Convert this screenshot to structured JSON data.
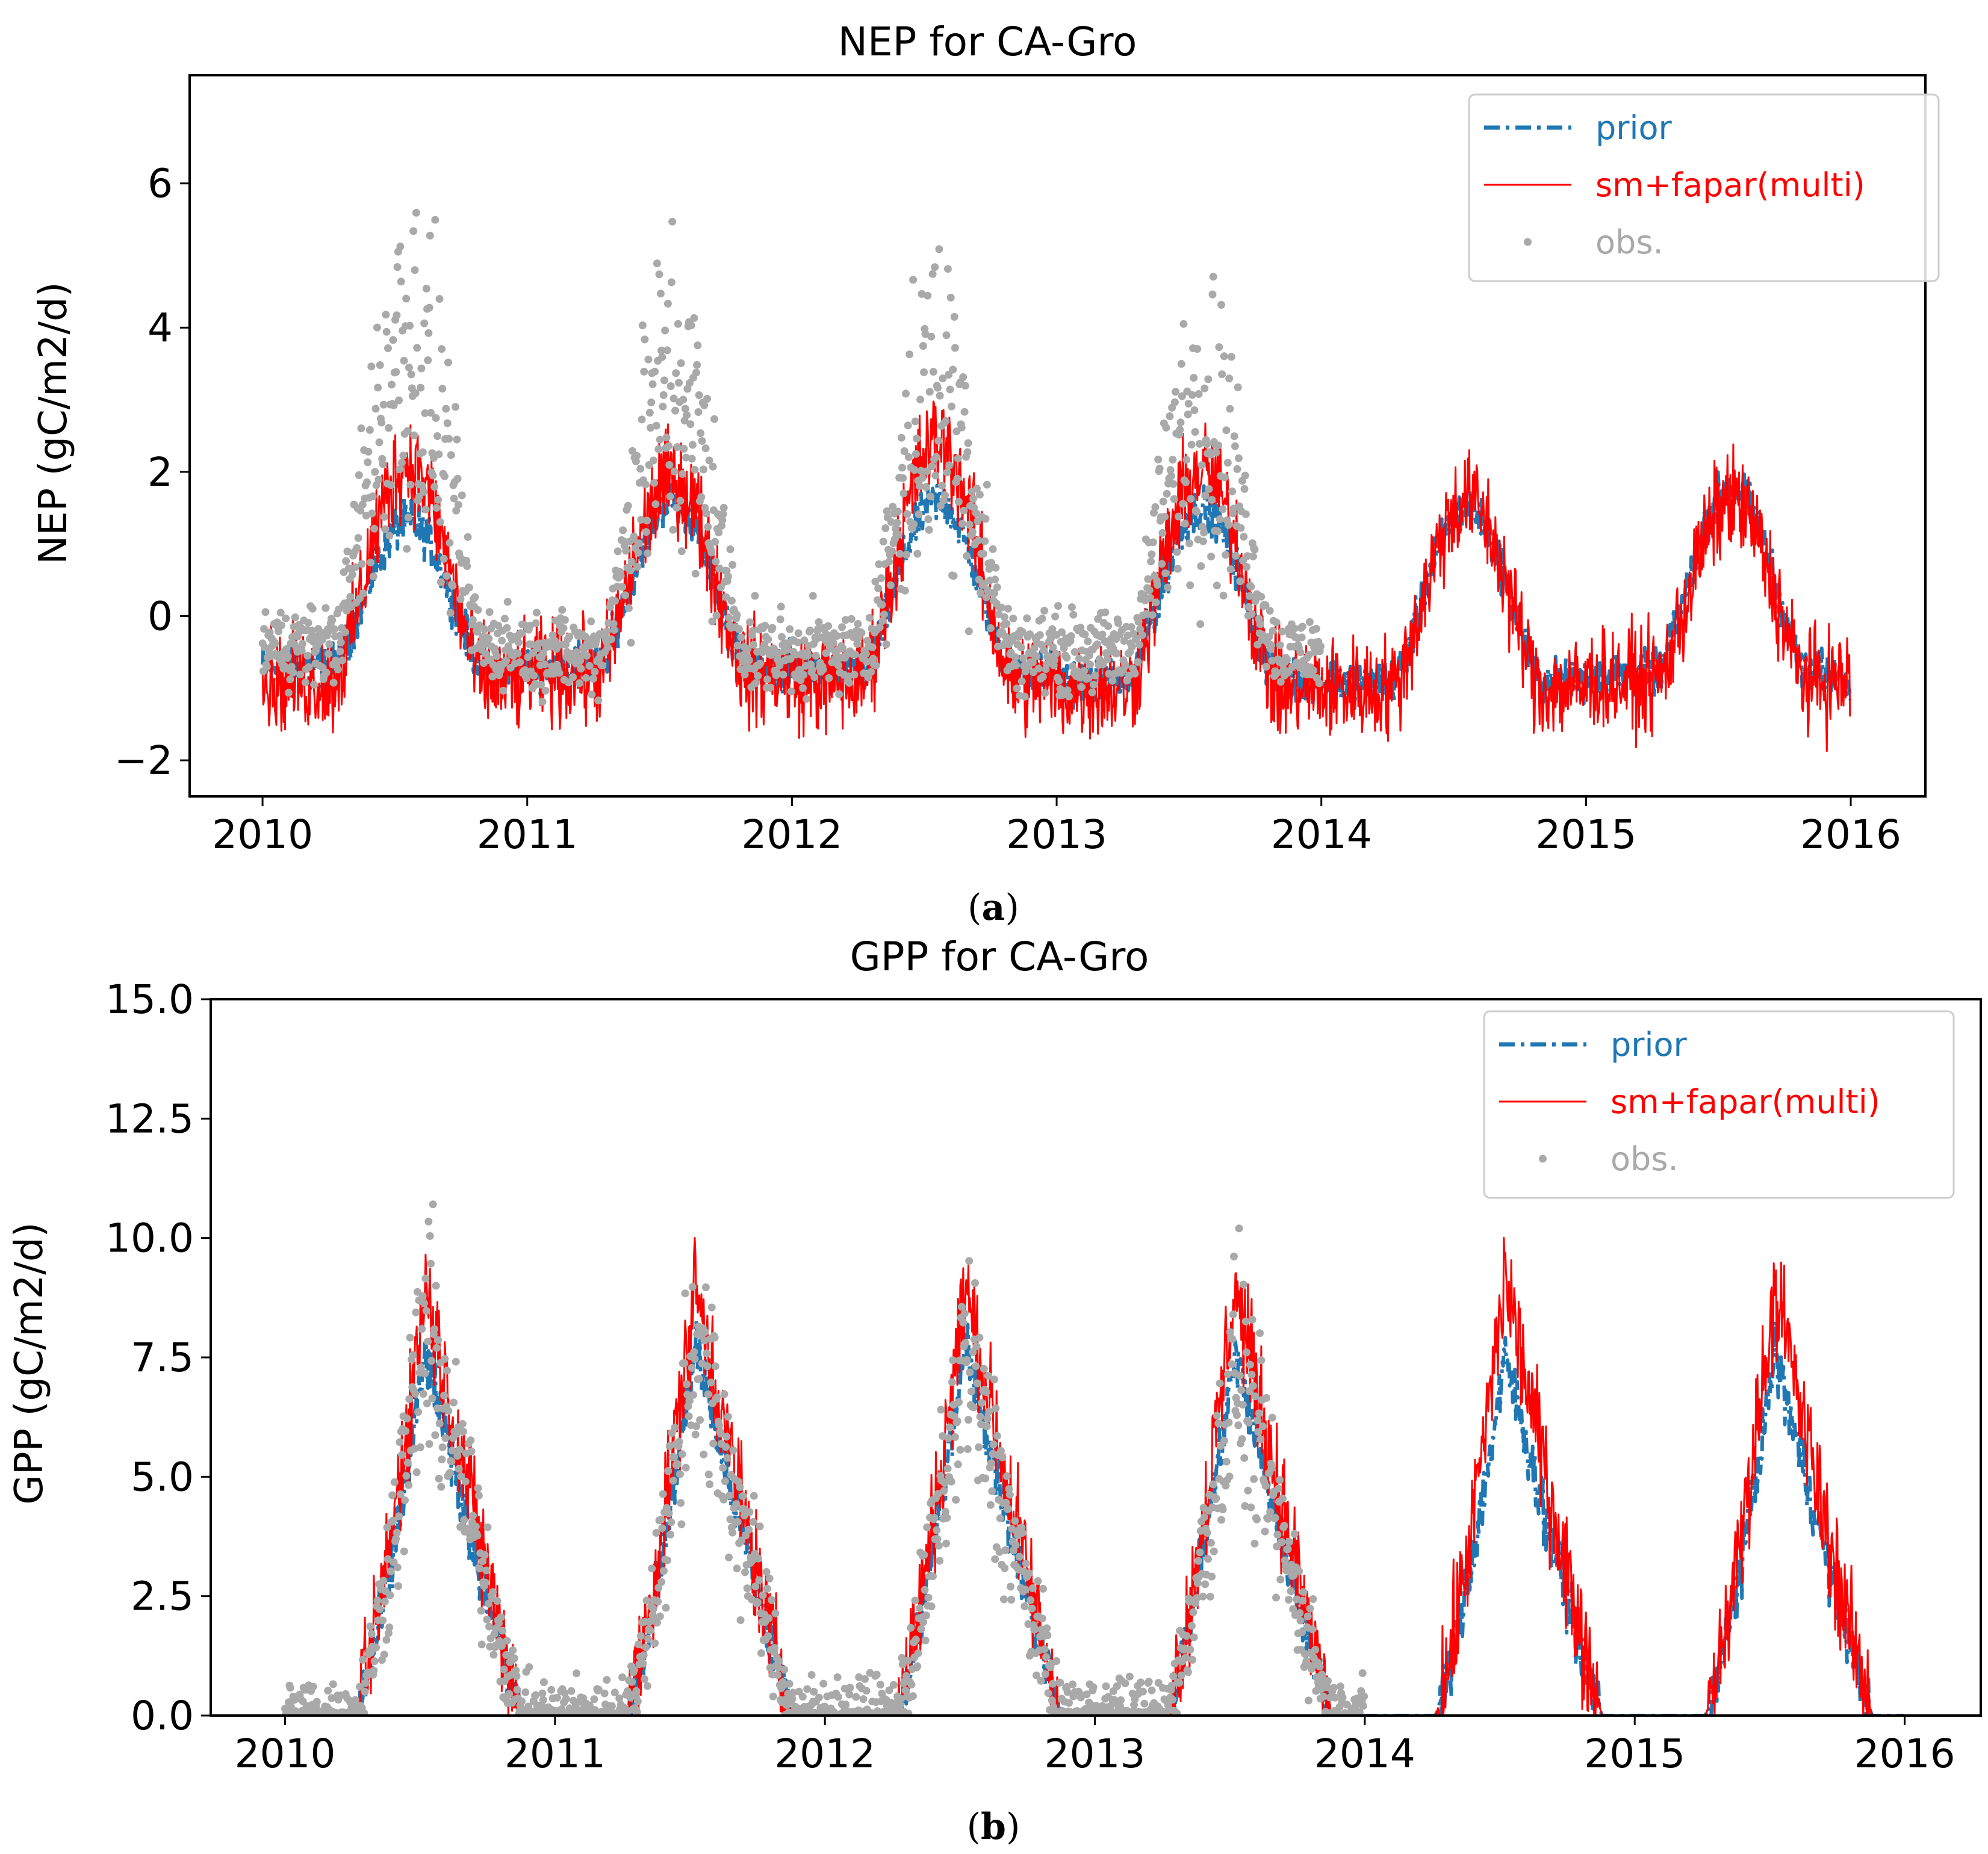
{
  "colors": {
    "prior": "#1f77b4",
    "sm": "#ff0000",
    "obs": "#a9a9a9",
    "axis": "#000000",
    "legend_border": "#cccccc"
  },
  "chart_data": [
    {
      "type": "line",
      "title": "NEP for CA-Gro",
      "xlabel": "",
      "ylabel": "NEP (gC/m2/d)",
      "xlim": [
        2010,
        2016
      ],
      "ylim": [
        -2.5,
        7.5
      ],
      "x_ticks": [
        2010,
        2011,
        2012,
        2013,
        2014,
        2015,
        2016
      ],
      "x_tick_labels": [
        "2010",
        "2011",
        "2012",
        "2013",
        "2014",
        "2015",
        "2016"
      ],
      "y_ticks": [
        -2,
        0,
        2,
        4,
        6
      ],
      "y_tick_labels": [
        "−2",
        "0",
        "2",
        "4",
        "6"
      ],
      "legend_position": "top-right",
      "series": [
        {
          "name": "prior",
          "style": "dash-dot",
          "color": "#1f77b4",
          "winter": [
            -0.7,
            -0.7,
            -0.8,
            -0.9,
            -0.9,
            -0.8
          ],
          "peak": [
            1.3,
            1.6,
            1.6,
            1.5,
            1.5,
            1.8
          ],
          "noise": 0.15
        },
        {
          "name": "sm+fapar(multi)",
          "style": "solid",
          "color": "#ff0000",
          "winter": [
            -0.9,
            -0.8,
            -0.9,
            -1.0,
            -1.0,
            -0.9
          ],
          "peak": [
            2.1,
            1.9,
            2.4,
            2.0,
            1.6,
            1.6
          ],
          "noise": 0.35
        },
        {
          "name": "obs.",
          "style": "points",
          "color": "#a9a9a9",
          "winter": [
            -0.4,
            -0.5,
            -0.5,
            -0.5,
            -0.5,
            null
          ],
          "peak": [
            3.6,
            3.1,
            3.0,
            2.8,
            null,
            null
          ],
          "noise": 0.9,
          "years_with_data": 4
        }
      ]
    },
    {
      "type": "line",
      "title": "GPP for CA-Gro",
      "xlabel": "",
      "ylabel": "GPP (gC/m2/d)",
      "xlim": [
        2010,
        2016
      ],
      "ylim": [
        0,
        15
      ],
      "x_ticks": [
        2010,
        2011,
        2012,
        2013,
        2014,
        2015,
        2016
      ],
      "x_tick_labels": [
        "2010",
        "2011",
        "2012",
        "2013",
        "2014",
        "2015",
        "2016"
      ],
      "y_ticks": [
        0,
        2.5,
        5,
        7.5,
        10,
        12.5,
        15
      ],
      "y_tick_labels": [
        "0.0",
        "2.5",
        "5.0",
        "7.5",
        "10.0",
        "12.5",
        "15.0"
      ],
      "legend_position": "top-right",
      "series": [
        {
          "name": "prior",
          "style": "dash-dot",
          "color": "#1f77b4",
          "winter": [
            0,
            0,
            0,
            0,
            0,
            0
          ],
          "peak": [
            7.6,
            7.8,
            7.8,
            7.6,
            7.5,
            7.6
          ],
          "noise": 0.3
        },
        {
          "name": "sm+fapar(multi)",
          "style": "solid",
          "color": "#ff0000",
          "winter": [
            0,
            0,
            0,
            0,
            0,
            0
          ],
          "peak": [
            9.0,
            9.0,
            9.0,
            9.0,
            9.2,
            9.0
          ],
          "noise": 0.6
        },
        {
          "name": "obs.",
          "style": "points",
          "color": "#a9a9a9",
          "winter": [
            0.05,
            0.05,
            0.05,
            0.05,
            0.05,
            null
          ],
          "peak": [
            8.2,
            8.0,
            7.6,
            7.4,
            null,
            null
          ],
          "noise": 1.2,
          "years_with_data": 4
        }
      ]
    }
  ],
  "captions": [
    "(a)",
    "(b)"
  ],
  "caption_letters": [
    "a",
    "b"
  ]
}
